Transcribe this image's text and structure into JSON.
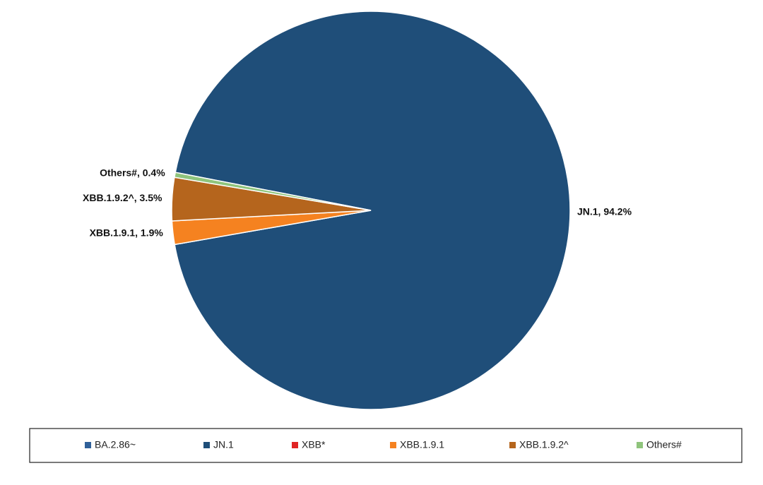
{
  "chart_data": {
    "type": "pie",
    "categories": [
      "BA.2.86~",
      "JN.1",
      "XBB*",
      "XBB.1.9.1",
      "XBB.1.9.2^",
      "Others#"
    ],
    "values": [
      0,
      94.2,
      0,
      1.9,
      3.5,
      0.4
    ],
    "value_labels": [
      null,
      "JN.1, 94.2%",
      null,
      "XBB.1.9.1, 1.9%",
      "XBB.1.9.2^, 3.5%",
      "Others#, 0.4%"
    ],
    "colors": [
      "#2f6099",
      "#1f4e79",
      "#e02424",
      "#f58220",
      "#b5651d",
      "#8fc47c"
    ],
    "legend": "bottom"
  }
}
